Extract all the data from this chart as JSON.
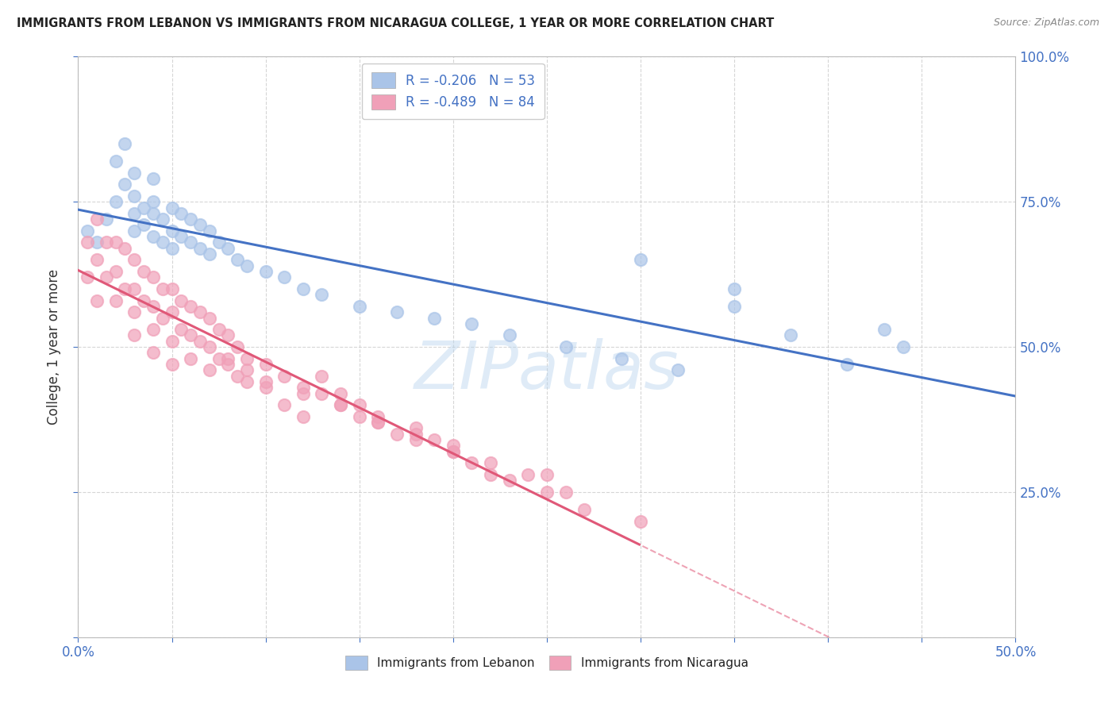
{
  "title": "IMMIGRANTS FROM LEBANON VS IMMIGRANTS FROM NICARAGUA COLLEGE, 1 YEAR OR MORE CORRELATION CHART",
  "source": "Source: ZipAtlas.com",
  "ylabel_label": "College, 1 year or more",
  "legend_label1": "Immigrants from Lebanon",
  "legend_label2": "Immigrants from Nicaragua",
  "R1": -0.206,
  "N1": 53,
  "R2": -0.489,
  "N2": 84,
  "color1": "#aac4e8",
  "color2": "#f0a0b8",
  "line_color1": "#4472c4",
  "line_color2": "#e05878",
  "watermark": "ZIPatlas",
  "background_color": "#ffffff",
  "xlim": [
    0.0,
    0.5
  ],
  "ylim": [
    0.0,
    1.0
  ],
  "lebanon_x": [
    0.005,
    0.01,
    0.015,
    0.02,
    0.02,
    0.025,
    0.025,
    0.03,
    0.03,
    0.03,
    0.03,
    0.035,
    0.035,
    0.04,
    0.04,
    0.04,
    0.04,
    0.045,
    0.045,
    0.05,
    0.05,
    0.05,
    0.055,
    0.055,
    0.06,
    0.06,
    0.065,
    0.065,
    0.07,
    0.07,
    0.075,
    0.08,
    0.085,
    0.09,
    0.1,
    0.11,
    0.12,
    0.13,
    0.15,
    0.17,
    0.19,
    0.21,
    0.23,
    0.26,
    0.29,
    0.32,
    0.35,
    0.38,
    0.41,
    0.43,
    0.3,
    0.35,
    0.44
  ],
  "lebanon_y": [
    0.7,
    0.68,
    0.72,
    0.75,
    0.82,
    0.78,
    0.85,
    0.8,
    0.76,
    0.73,
    0.7,
    0.74,
    0.71,
    0.79,
    0.75,
    0.73,
    0.69,
    0.72,
    0.68,
    0.74,
    0.7,
    0.67,
    0.73,
    0.69,
    0.72,
    0.68,
    0.71,
    0.67,
    0.7,
    0.66,
    0.68,
    0.67,
    0.65,
    0.64,
    0.63,
    0.62,
    0.6,
    0.59,
    0.57,
    0.56,
    0.55,
    0.54,
    0.52,
    0.5,
    0.48,
    0.46,
    0.57,
    0.52,
    0.47,
    0.53,
    0.65,
    0.6,
    0.5
  ],
  "nicaragua_x": [
    0.005,
    0.005,
    0.01,
    0.01,
    0.01,
    0.015,
    0.015,
    0.02,
    0.02,
    0.02,
    0.025,
    0.025,
    0.03,
    0.03,
    0.03,
    0.03,
    0.035,
    0.035,
    0.04,
    0.04,
    0.04,
    0.04,
    0.045,
    0.045,
    0.05,
    0.05,
    0.05,
    0.05,
    0.055,
    0.055,
    0.06,
    0.06,
    0.06,
    0.065,
    0.065,
    0.07,
    0.07,
    0.07,
    0.075,
    0.075,
    0.08,
    0.08,
    0.085,
    0.085,
    0.09,
    0.09,
    0.1,
    0.1,
    0.11,
    0.11,
    0.12,
    0.12,
    0.13,
    0.14,
    0.15,
    0.16,
    0.17,
    0.18,
    0.2,
    0.21,
    0.22,
    0.23,
    0.25,
    0.27,
    0.13,
    0.14,
    0.15,
    0.16,
    0.18,
    0.19,
    0.2,
    0.22,
    0.24,
    0.26,
    0.08,
    0.09,
    0.1,
    0.12,
    0.14,
    0.16,
    0.18,
    0.2,
    0.25,
    0.3
  ],
  "nicaragua_y": [
    0.68,
    0.62,
    0.72,
    0.65,
    0.58,
    0.68,
    0.62,
    0.68,
    0.63,
    0.58,
    0.67,
    0.6,
    0.65,
    0.6,
    0.56,
    0.52,
    0.63,
    0.58,
    0.62,
    0.57,
    0.53,
    0.49,
    0.6,
    0.55,
    0.6,
    0.56,
    0.51,
    0.47,
    0.58,
    0.53,
    0.57,
    0.52,
    0.48,
    0.56,
    0.51,
    0.55,
    0.5,
    0.46,
    0.53,
    0.48,
    0.52,
    0.47,
    0.5,
    0.45,
    0.48,
    0.44,
    0.47,
    0.43,
    0.45,
    0.4,
    0.43,
    0.38,
    0.42,
    0.4,
    0.38,
    0.37,
    0.35,
    0.34,
    0.32,
    0.3,
    0.28,
    0.27,
    0.25,
    0.22,
    0.45,
    0.42,
    0.4,
    0.38,
    0.36,
    0.34,
    0.32,
    0.3,
    0.28,
    0.25,
    0.48,
    0.46,
    0.44,
    0.42,
    0.4,
    0.37,
    0.35,
    0.33,
    0.28,
    0.2
  ]
}
